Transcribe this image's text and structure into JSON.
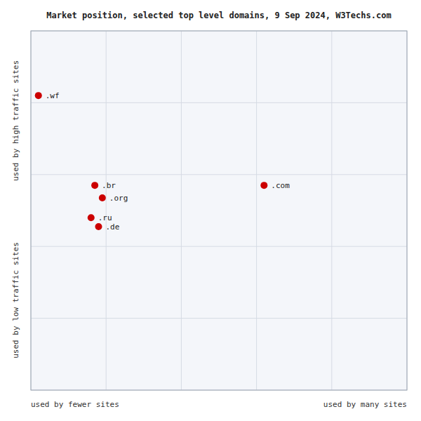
{
  "chart_data": {
    "type": "scatter",
    "title": "Market position, selected top level domains, 9 Sep 2024, W3Techs.com",
    "xlabel_left": "used by fewer sites",
    "xlabel_right": "used by many sites",
    "ylabel_top": "used by high traffic sites",
    "ylabel_bottom": "used by low traffic sites",
    "point_labels": [
      ".wf",
      ".br",
      ".org",
      ".ru",
      ".de",
      ".com"
    ],
    "x": [
      2.0,
      17,
      19,
      16,
      18,
      62
    ],
    "values": [
      82,
      57,
      53.5,
      48,
      45.5,
      57
    ],
    "color": "#cc0000",
    "marker": "circle",
    "xlim": [
      0,
      100
    ],
    "ylim": [
      0,
      100
    ],
    "xticks": [
      0,
      20,
      40,
      60,
      80,
      100
    ],
    "yticks": [
      0,
      20,
      40,
      60,
      80,
      100
    ],
    "grid": true,
    "tick_labels": false
  }
}
